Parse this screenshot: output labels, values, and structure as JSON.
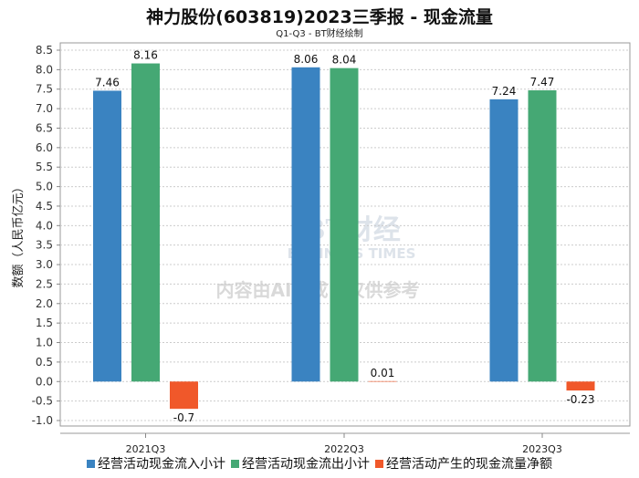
{
  "chart_data": {
    "type": "bar",
    "title": "神力股份(603819)2023三季报 - 现金流量",
    "subtitle": "Q1-Q3 - BT财经绘制",
    "xlabel": "",
    "ylabel": "数额（人民币亿元）",
    "ylim": [
      -1.0,
      8.5
    ],
    "yticks": [
      "8.5",
      "8.0",
      "7.5",
      "7.0",
      "6.5",
      "6.0",
      "5.5",
      "5.0",
      "4.5",
      "4.0",
      "3.5",
      "3.0",
      "2.5",
      "2.0",
      "1.5",
      "1.0",
      "0.5",
      "0.0",
      "-0.5",
      "-1.0"
    ],
    "categories": [
      "2021Q3",
      "2022Q3",
      "2023Q3"
    ],
    "series": [
      {
        "name": "经营活动现金流入小计",
        "color": "#3a83c1",
        "values": [
          7.46,
          8.06,
          7.24
        ],
        "labels": [
          "7.46",
          "8.06",
          "7.24"
        ]
      },
      {
        "name": "经营活动现金流出小计",
        "color": "#45a874",
        "values": [
          8.16,
          8.04,
          7.47
        ],
        "labels": [
          "8.16",
          "8.04",
          "7.47"
        ]
      },
      {
        "name": "经营活动产生的现金流量净额",
        "color": "#f0582a",
        "values": [
          -0.7,
          0.01,
          -0.23
        ],
        "labels": [
          "-0.7",
          "0.01",
          "-0.23"
        ]
      }
    ],
    "grid": true,
    "legend": "bottom"
  },
  "watermark": {
    "brand": "BT财经",
    "brand_en": "BUSINESS TIMES",
    "notice": "内容由AI生成，仅供参考"
  }
}
